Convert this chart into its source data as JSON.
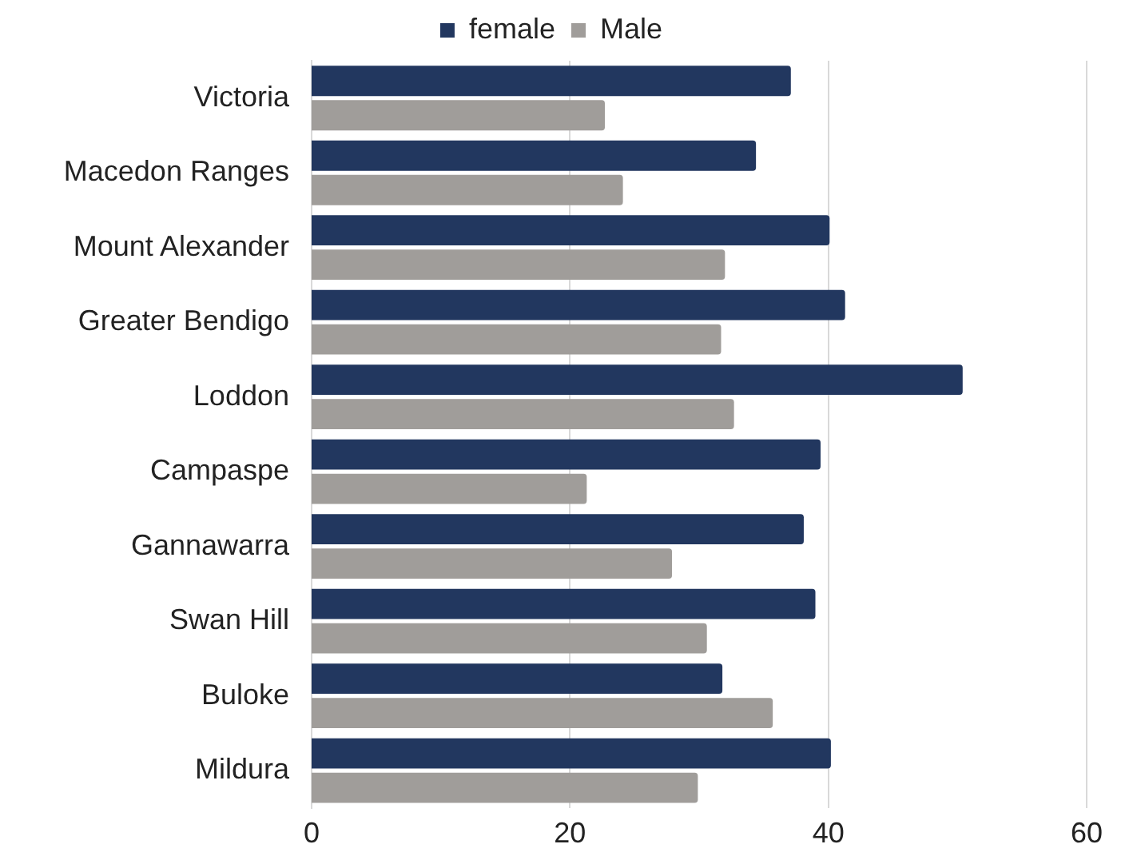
{
  "chart_data": {
    "type": "bar",
    "orientation": "horizontal",
    "categories": [
      "Victoria",
      "Macedon Ranges",
      "Mount Alexander",
      "Greater Bendigo",
      "Loddon",
      "Campaspe",
      "Gannawarra",
      "Swan Hill",
      "Buloke",
      "Mildura"
    ],
    "series": [
      {
        "name": "female",
        "color": "#22375f",
        "values": [
          37.1,
          34.4,
          40.1,
          41.3,
          50.4,
          39.4,
          38.1,
          39.0,
          31.8,
          40.2
        ]
      },
      {
        "name": "Male",
        "color": "#a09d9a",
        "values": [
          22.7,
          24.1,
          32.0,
          31.7,
          32.7,
          21.3,
          27.9,
          30.6,
          35.7,
          29.9
        ]
      }
    ],
    "xlim": [
      0,
      60
    ],
    "xticks": [
      0,
      20,
      40,
      60
    ],
    "grid": "x",
    "legend": "top"
  }
}
